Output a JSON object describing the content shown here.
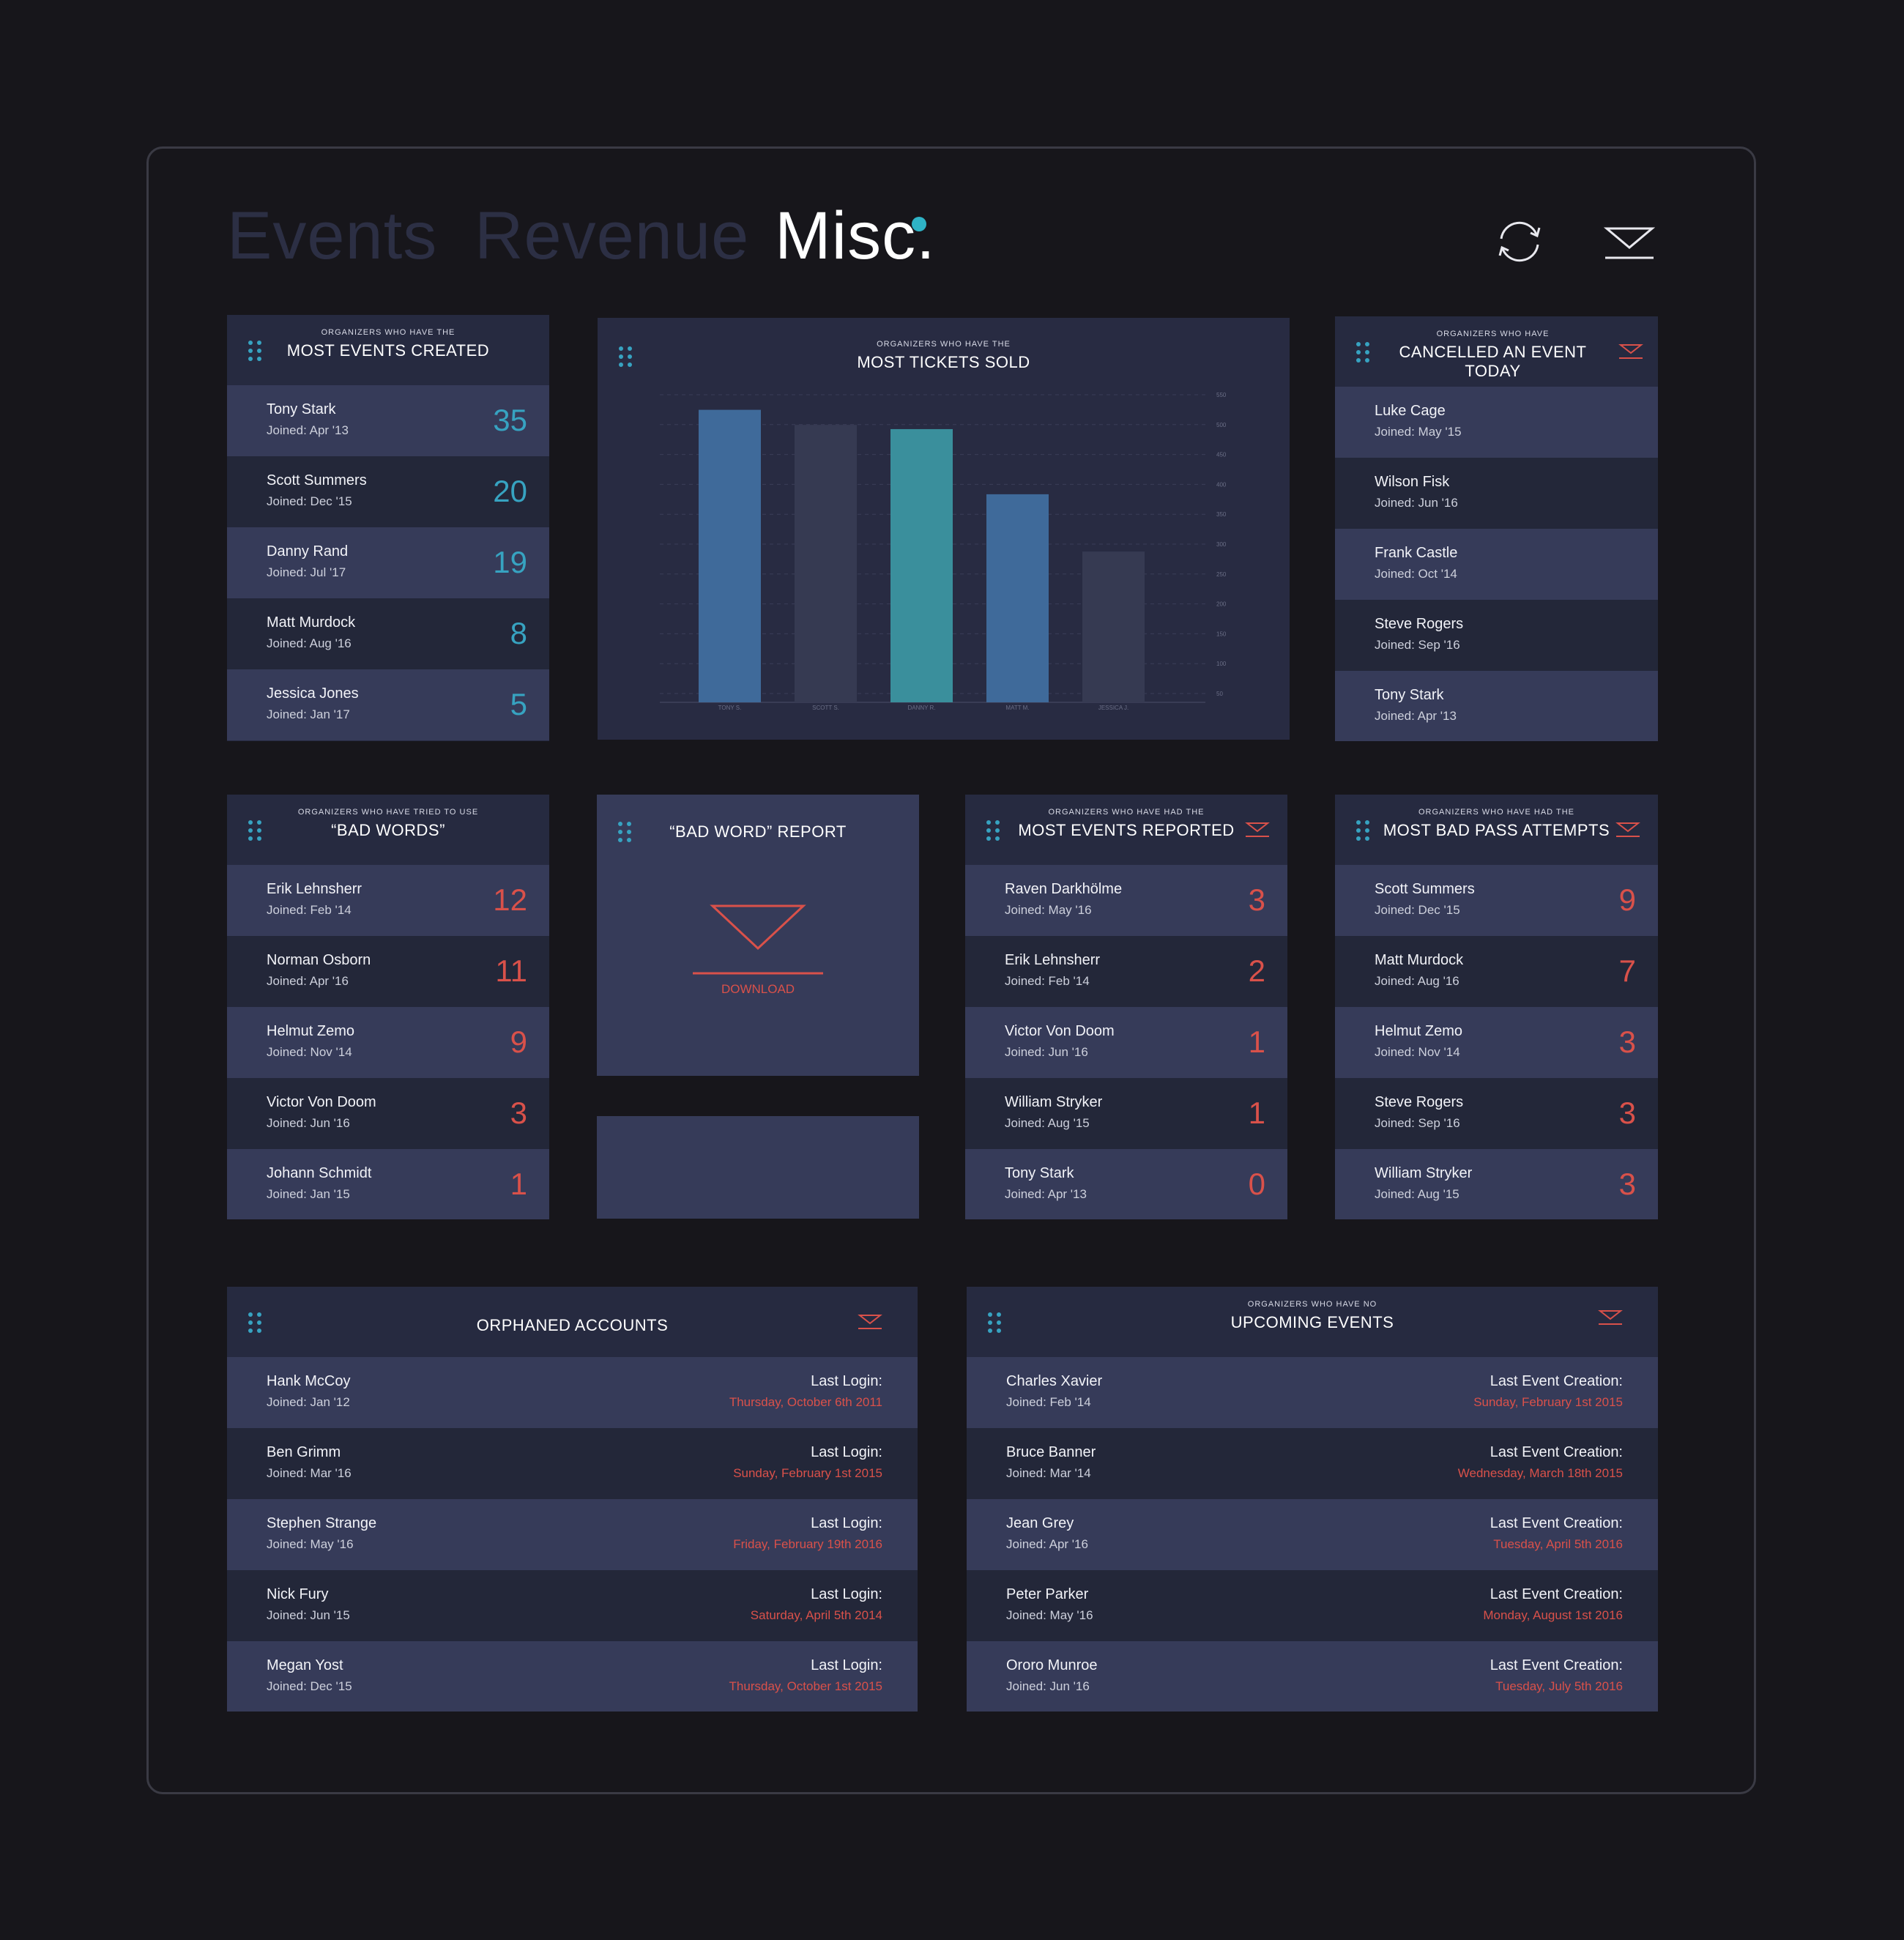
{
  "tabs": [
    {
      "label": "Events",
      "active": false
    },
    {
      "label": "Revenue",
      "active": false
    },
    {
      "label": "Misc.",
      "active": true
    }
  ],
  "header_icons": [
    "refresh-icon",
    "download-icon"
  ],
  "colors": {
    "accent_blue": "#37a3c1",
    "accent_red": "#d9514a",
    "teal": "#3a8f9c",
    "bar_blue": "#3f6a9a",
    "bar_grey": "#363a52"
  },
  "most_events_created": {
    "subtitle": "ORGANIZERS WHO HAVE THE",
    "title": "MOST EVENTS CREATED",
    "rows": [
      {
        "name": "Tony Stark",
        "joined": "Joined: Apr '13",
        "value": "35"
      },
      {
        "name": "Scott Summers",
        "joined": "Joined: Dec '15",
        "value": "20"
      },
      {
        "name": "Danny Rand",
        "joined": "Joined: Jul '17",
        "value": "19"
      },
      {
        "name": "Matt Murdock",
        "joined": "Joined: Aug '16",
        "value": "8"
      },
      {
        "name": "Jessica Jones",
        "joined": "Joined: Jan '17",
        "value": "5"
      }
    ]
  },
  "most_tickets_sold": {
    "subtitle": "ORGANIZERS WHO HAVE THE",
    "title": "MOST TICKETS SOLD"
  },
  "chart_data": {
    "type": "bar",
    "title": "MOST TICKETS SOLD",
    "categories": [
      "TONY S.",
      "SCOTT S.",
      "DANNY R.",
      "MATT M.",
      "JESSICA J."
    ],
    "values": [
      485,
      460,
      453,
      345,
      250
    ],
    "bar_colors": [
      "#3f6a9a",
      "#363a52",
      "#3a8f9c",
      "#3f6a9a",
      "#363a52"
    ],
    "ytick_labels": [
      "550",
      "500",
      "450",
      "400",
      "350",
      "300",
      "250",
      "200",
      "150",
      "100",
      "50"
    ],
    "ylim": [
      0,
      510
    ],
    "grid": true,
    "y_axis_side": "right"
  },
  "cancelled_today": {
    "subtitle": "ORGANIZERS WHO HAVE",
    "title": "CANCELLED AN EVENT TODAY",
    "rows": [
      {
        "name": "Luke Cage",
        "joined": "Joined: May '15"
      },
      {
        "name": "Wilson Fisk",
        "joined": "Joined: Jun '16"
      },
      {
        "name": "Frank Castle",
        "joined": "Joined: Oct '14"
      },
      {
        "name": "Steve Rogers",
        "joined": "Joined: Sep '16"
      },
      {
        "name": "Tony Stark",
        "joined": "Joined: Apr '13"
      }
    ]
  },
  "bad_words": {
    "subtitle": "ORGANIZERS WHO HAVE TRIED TO USE",
    "title": "“BAD WORDS”",
    "rows": [
      {
        "name": "Erik Lehnsherr",
        "joined": "Joined: Feb '14",
        "value": "12"
      },
      {
        "name": "Norman Osborn",
        "joined": "Joined: Apr '16",
        "value": "11"
      },
      {
        "name": "Helmut Zemo",
        "joined": "Joined: Nov '14",
        "value": "9"
      },
      {
        "name": "Victor Von Doom",
        "joined": "Joined: Jun '16",
        "value": "3"
      },
      {
        "name": "Johann Schmidt",
        "joined": "Joined: Jan '15",
        "value": "1"
      }
    ]
  },
  "bad_word_report": {
    "title": "“BAD WORD” REPORT",
    "download_label": "DOWNLOAD"
  },
  "most_events_reported": {
    "subtitle": "ORGANIZERS WHO HAVE HAD THE",
    "title": "MOST EVENTS REPORTED",
    "rows": [
      {
        "name": "Raven Darkhölme",
        "joined": "Joined: May '16",
        "value": "3"
      },
      {
        "name": "Erik Lehnsherr",
        "joined": "Joined: Feb '14",
        "value": "2"
      },
      {
        "name": "Victor Von Doom",
        "joined": "Joined: Jun '16",
        "value": "1"
      },
      {
        "name": "William Stryker",
        "joined": "Joined: Aug '15",
        "value": "1"
      },
      {
        "name": "Tony Stark",
        "joined": "Joined: Apr '13",
        "value": "0"
      }
    ]
  },
  "bad_pass_attempts": {
    "subtitle": "ORGANIZERS WHO HAVE HAD THE",
    "title": "MOST BAD PASS ATTEMPTS",
    "rows": [
      {
        "name": "Scott Summers",
        "joined": "Joined: Dec '15",
        "value": "9"
      },
      {
        "name": "Matt Murdock",
        "joined": "Joined: Aug '16",
        "value": "7"
      },
      {
        "name": "Helmut Zemo",
        "joined": "Joined: Nov '14",
        "value": "3"
      },
      {
        "name": "Steve Rogers",
        "joined": "Joined: Sep '16",
        "value": "3"
      },
      {
        "name": "William Stryker",
        "joined": "Joined: Aug '15",
        "value": "3"
      }
    ]
  },
  "orphaned_accounts": {
    "title": "ORPHANED ACCOUNTS",
    "rows": [
      {
        "name": "Hank McCoy",
        "joined": "Joined: Jan '12",
        "label": "Last Login:",
        "date": "Thursday, October 6th 2011"
      },
      {
        "name": "Ben Grimm",
        "joined": "Joined: Mar '16",
        "label": "Last Login:",
        "date": "Sunday, February 1st 2015"
      },
      {
        "name": "Stephen Strange",
        "joined": "Joined: May '16",
        "label": "Last Login:",
        "date": "Friday, February 19th 2016"
      },
      {
        "name": "Nick Fury",
        "joined": "Joined: Jun '15",
        "label": "Last Login:",
        "date": "Saturday, April 5th 2014"
      },
      {
        "name": "Megan Yost",
        "joined": "Joined: Dec '15",
        "label": "Last Login:",
        "date": "Thursday, October 1st 2015"
      }
    ]
  },
  "no_upcoming_events": {
    "subtitle": "ORGANIZERS WHO HAVE NO",
    "title": "UPCOMING EVENTS",
    "rows": [
      {
        "name": "Charles Xavier",
        "joined": "Joined: Feb '14",
        "label": "Last Event Creation:",
        "date": "Sunday, February 1st 2015"
      },
      {
        "name": "Bruce Banner",
        "joined": "Joined: Mar '14",
        "label": "Last Event Creation:",
        "date": "Wednesday, March 18th 2015"
      },
      {
        "name": "Jean Grey",
        "joined": "Joined: Apr '16",
        "label": "Last Event Creation:",
        "date": "Tuesday, April 5th 2016"
      },
      {
        "name": "Peter Parker",
        "joined": "Joined: May '16",
        "label": "Last Event Creation:",
        "date": "Monday, August 1st 2016"
      },
      {
        "name": "Ororo Munroe",
        "joined": "Joined: Jun '16",
        "label": "Last Event Creation:",
        "date": "Tuesday, July 5th 2016"
      }
    ]
  }
}
